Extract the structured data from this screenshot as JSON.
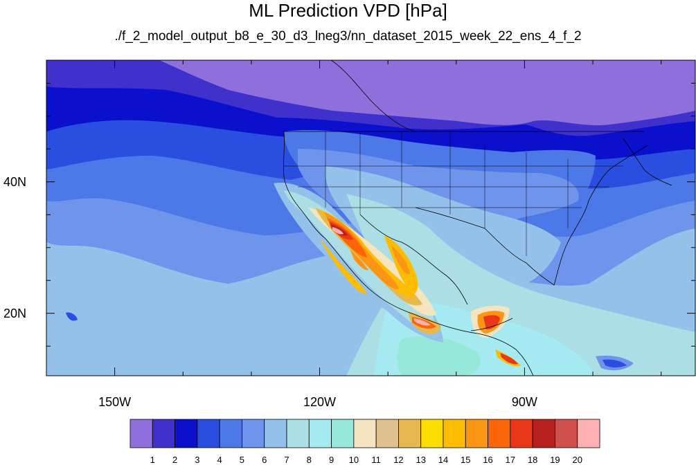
{
  "title": "ML Prediction VPD [hPa]",
  "subtitle": "./f_2_model_output_b8_e_30_d3_lneg3/nn_dataset_2015_week_22_ens_4_f_2",
  "map": {
    "projection": "cylindrical-equidistant",
    "lon_range": [
      -160,
      -65
    ],
    "lat_range": [
      10.5,
      58.5
    ],
    "lon_ticks": [
      {
        "value": -150,
        "label": "150W"
      },
      {
        "value": -120,
        "label": "120W"
      },
      {
        "value": -90,
        "label": "90W"
      }
    ],
    "lat_ticks": [
      {
        "value": 40,
        "label": "40N"
      },
      {
        "value": 20,
        "label": "20N"
      }
    ],
    "minor_lon_ticks": [
      -140,
      -130,
      -110,
      -100,
      -80,
      -70
    ],
    "minor_lat_ticks": [
      15,
      25,
      30,
      35,
      45,
      50,
      55
    ]
  },
  "colorbar": {
    "levels": [
      "1",
      "2",
      "3",
      "4",
      "5",
      "6",
      "7",
      "8",
      "9",
      "10",
      "11",
      "12",
      "13",
      "14",
      "15",
      "16",
      "17",
      "18",
      "19",
      "20"
    ],
    "colors": [
      "#8f6fdb",
      "#4030cc",
      "#0a10cc",
      "#2a4ee0",
      "#4d78e8",
      "#6f94ec",
      "#93c1ea",
      "#acdee6",
      "#a4eaf0",
      "#96e8da",
      "#f4e4c0",
      "#e0c090",
      "#e8b850",
      "#fede00",
      "#fcbc00",
      "#fc9414",
      "#fc6408",
      "#e83818",
      "#b82020",
      "#d05050",
      "#fcb0b0"
    ]
  }
}
